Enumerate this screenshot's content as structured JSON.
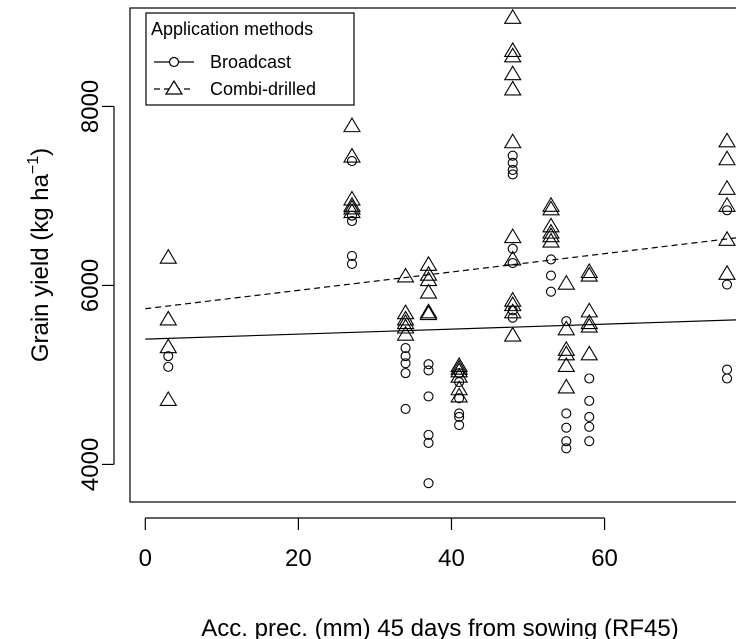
{
  "chart_data": {
    "type": "scatter",
    "xlabel": "Acc. prec. (mm) 45 days from sowing (RF45)",
    "ylabel_main": "Grain yield (kg ha",
    "ylabel_sup": "−1",
    "ylabel_close": ")",
    "xlim": [
      -2,
      79
    ],
    "ylim": [
      3580,
      9100
    ],
    "xticks": [
      0,
      20,
      40,
      60
    ],
    "yticks": [
      4000,
      6000,
      8000
    ],
    "legend": {
      "title": "Application methods",
      "position": "top-left",
      "entries": [
        "Broadcast",
        "Combi-drilled"
      ]
    },
    "series": [
      {
        "name": "Broadcast",
        "marker": "circle",
        "line_style": "solid",
        "regression": [
          [
            0,
            5400
          ],
          [
            79,
            5620
          ]
        ],
        "points": [
          [
            3,
            5210
          ],
          [
            3,
            5090
          ],
          [
            27,
            7390
          ],
          [
            27,
            6780
          ],
          [
            27,
            6720
          ],
          [
            27,
            6330
          ],
          [
            27,
            6240
          ],
          [
            34,
            5300
          ],
          [
            34,
            5210
          ],
          [
            34,
            5130
          ],
          [
            34,
            5020
          ],
          [
            34,
            4620
          ],
          [
            37,
            5120
          ],
          [
            37,
            5050
          ],
          [
            37,
            4760
          ],
          [
            37,
            4330
          ],
          [
            37,
            4240
          ],
          [
            37,
            3790
          ],
          [
            41,
            5020
          ],
          [
            41,
            4920
          ],
          [
            41,
            4740
          ],
          [
            41,
            4570
          ],
          [
            41,
            4530
          ],
          [
            41,
            4440
          ],
          [
            48,
            7450
          ],
          [
            48,
            7370
          ],
          [
            48,
            7290
          ],
          [
            48,
            7240
          ],
          [
            48,
            6410
          ],
          [
            48,
            6250
          ],
          [
            48,
            5720
          ],
          [
            48,
            5640
          ],
          [
            53,
            6290
          ],
          [
            53,
            6110
          ],
          [
            53,
            5930
          ],
          [
            55,
            5600
          ],
          [
            55,
            4570
          ],
          [
            55,
            4410
          ],
          [
            55,
            4260
          ],
          [
            55,
            4180
          ],
          [
            58,
            4960
          ],
          [
            58,
            4710
          ],
          [
            58,
            4530
          ],
          [
            58,
            4420
          ],
          [
            58,
            4260
          ],
          [
            76,
            6840
          ],
          [
            76,
            6010
          ],
          [
            76,
            5060
          ],
          [
            76,
            4960
          ]
        ]
      },
      {
        "name": "Combi-drilled",
        "marker": "triangle",
        "line_style": "dashed",
        "regression": [
          [
            0,
            5740
          ],
          [
            79,
            6550
          ]
        ],
        "points": [
          [
            3,
            6310
          ],
          [
            3,
            5620
          ],
          [
            3,
            5310
          ],
          [
            3,
            4720
          ],
          [
            27,
            7780
          ],
          [
            27,
            7440
          ],
          [
            27,
            6960
          ],
          [
            27,
            6890
          ],
          [
            27,
            6860
          ],
          [
            27,
            6820
          ],
          [
            34,
            6100
          ],
          [
            34,
            5690
          ],
          [
            34,
            5620
          ],
          [
            34,
            5580
          ],
          [
            34,
            5530
          ],
          [
            34,
            5450
          ],
          [
            37,
            6230
          ],
          [
            37,
            6120
          ],
          [
            37,
            6060
          ],
          [
            37,
            5920
          ],
          [
            37,
            5700
          ],
          [
            37,
            5680
          ],
          [
            41,
            5100
          ],
          [
            41,
            5070
          ],
          [
            41,
            5040
          ],
          [
            41,
            4980
          ],
          [
            41,
            4840
          ],
          [
            41,
            4760
          ],
          [
            48,
            8990
          ],
          [
            48,
            8620
          ],
          [
            48,
            8560
          ],
          [
            48,
            8360
          ],
          [
            48,
            8190
          ],
          [
            48,
            7600
          ],
          [
            48,
            6540
          ],
          [
            48,
            6290
          ],
          [
            48,
            5830
          ],
          [
            48,
            5780
          ],
          [
            48,
            5700
          ],
          [
            48,
            5440
          ],
          [
            53,
            6890
          ],
          [
            53,
            6850
          ],
          [
            53,
            6660
          ],
          [
            53,
            6590
          ],
          [
            53,
            6550
          ],
          [
            53,
            6490
          ],
          [
            55,
            6020
          ],
          [
            55,
            5510
          ],
          [
            55,
            5280
          ],
          [
            55,
            5230
          ],
          [
            55,
            5100
          ],
          [
            55,
            4860
          ],
          [
            58,
            6150
          ],
          [
            58,
            6110
          ],
          [
            58,
            5710
          ],
          [
            58,
            5580
          ],
          [
            58,
            5540
          ],
          [
            58,
            5230
          ],
          [
            76,
            7610
          ],
          [
            76,
            7410
          ],
          [
            76,
            7080
          ],
          [
            76,
            6890
          ],
          [
            76,
            6510
          ],
          [
            76,
            6130
          ]
        ]
      }
    ]
  }
}
